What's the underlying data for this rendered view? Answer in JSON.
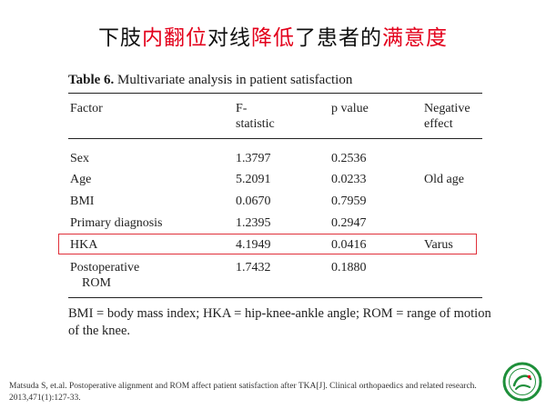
{
  "slide": {
    "title_parts": [
      {
        "text": "下肢",
        "highlight": false
      },
      {
        "text": "内翻位",
        "highlight": true
      },
      {
        "text": "对线",
        "highlight": false
      },
      {
        "text": "降低",
        "highlight": true
      },
      {
        "text": "了患者的",
        "highlight": false
      },
      {
        "text": "满意度",
        "highlight": true
      }
    ],
    "highlight_color": "#e3001b"
  },
  "table": {
    "caption_number": "Table 6.",
    "caption_text": "Multivariate analysis in patient satisfaction",
    "headers": {
      "factor": "Factor",
      "f_statistic_line1": "F-",
      "f_statistic_line2": "statistic",
      "p_value": "p value",
      "negative_effect_line1": "Negative",
      "negative_effect_line2": "effect"
    },
    "rows": [
      {
        "factor": "Sex",
        "f": "1.3797",
        "p": "0.2536",
        "effect": ""
      },
      {
        "factor": "Age",
        "f": "5.2091",
        "p": "0.0233",
        "effect": "Old age"
      },
      {
        "factor": "BMI",
        "f": "0.0670",
        "p": "0.7959",
        "effect": ""
      },
      {
        "factor": "Primary diagnosis",
        "f": "1.2395",
        "p": "0.2947",
        "effect": ""
      },
      {
        "factor": "HKA",
        "f": "4.1949",
        "p": "0.0416",
        "effect": "Varus",
        "highlighted": true
      },
      {
        "factor": "Postoperative",
        "factor_line2": "ROM",
        "f": "1.7432",
        "p": "0.1880",
        "effect": ""
      }
    ],
    "footnote": "BMI = body mass index; HKA = hip-knee-ankle angle; ROM = range of motion of the knee."
  },
  "reference": "Matsuda S, et.al. Postoperative alignment and ROM affect patient satisfaction after TKA[J]. Clinical orthopaedics and related research. 2013,471(1):127-33.",
  "logo": {
    "icon": "hospital-logo-icon",
    "color": "#1e8f3a"
  }
}
